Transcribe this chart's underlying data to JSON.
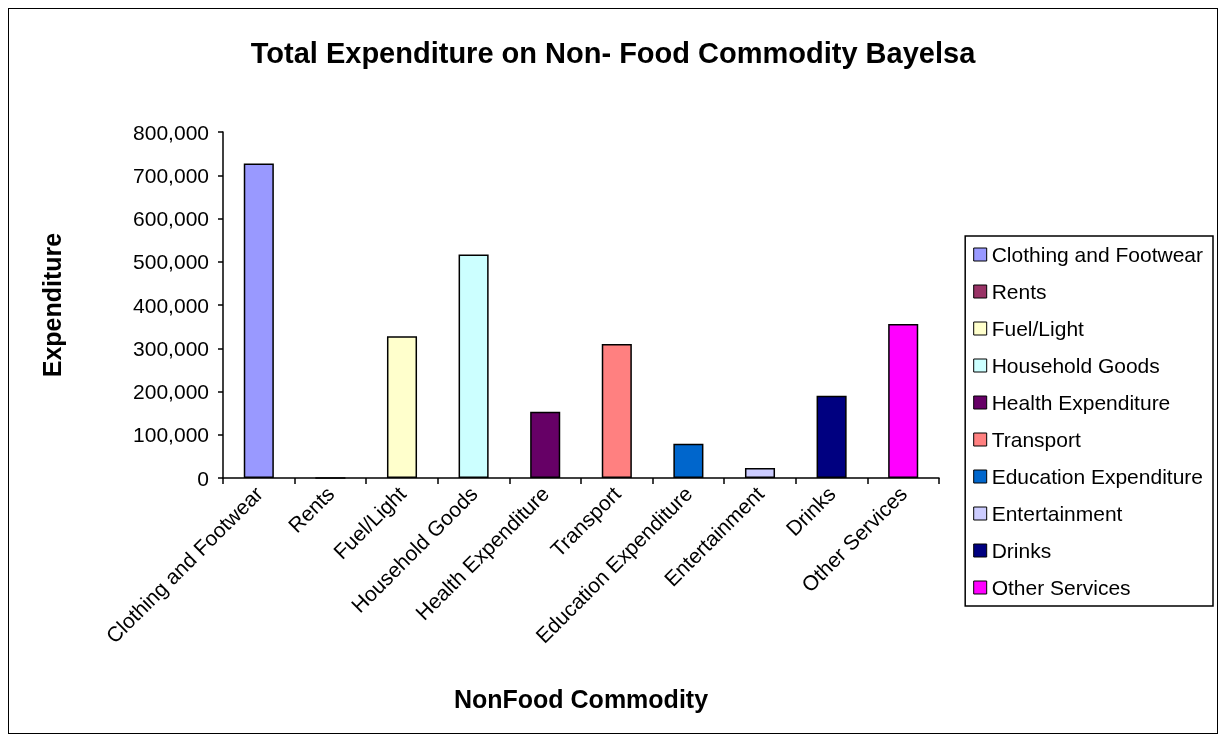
{
  "chart_data": {
    "type": "bar",
    "title": "Total Expenditure on Non- Food Commodity Bayelsa",
    "xlabel": "NonFood Commodity",
    "ylabel": "Expenditure",
    "categories": [
      "Clothing and Footwear",
      "Rents",
      "Fuel/Light",
      "Household Goods",
      "Health Expenditure",
      "Transport",
      "Education Expenditure",
      "Entertainment",
      "Drinks",
      "Other Services"
    ],
    "series": [
      {
        "name": "Clothing and Footwear",
        "color": "#9999ff",
        "values": [
          727000,
          null,
          null,
          null,
          null,
          null,
          null,
          null,
          null,
          null
        ]
      },
      {
        "name": "Rents",
        "color": "#993366",
        "values": [
          null,
          0,
          null,
          null,
          null,
          null,
          null,
          null,
          null,
          null
        ]
      },
      {
        "name": "Fuel/Light",
        "color": "#ffffcc",
        "values": [
          null,
          null,
          328000,
          null,
          null,
          null,
          null,
          null,
          null,
          null
        ]
      },
      {
        "name": "Household Goods",
        "color": "#ccffff",
        "values": [
          null,
          null,
          null,
          517000,
          null,
          null,
          null,
          null,
          null,
          null
        ]
      },
      {
        "name": "Health Expenditure",
        "color": "#660066",
        "values": [
          null,
          null,
          null,
          null,
          153000,
          null,
          null,
          null,
          null,
          null
        ]
      },
      {
        "name": "Transport",
        "color": "#ff8080",
        "values": [
          null,
          null,
          null,
          null,
          null,
          310000,
          null,
          null,
          null,
          null
        ]
      },
      {
        "name": "Education Expenditure",
        "color": "#0066cc",
        "values": [
          null,
          null,
          null,
          null,
          null,
          null,
          79000,
          null,
          null,
          null
        ]
      },
      {
        "name": "Entertainment",
        "color": "#ccccff",
        "values": [
          null,
          null,
          null,
          null,
          null,
          null,
          null,
          23000,
          null,
          null
        ]
      },
      {
        "name": "Drinks",
        "color": "#000080",
        "values": [
          null,
          null,
          null,
          null,
          null,
          null,
          null,
          null,
          190000,
          null
        ]
      },
      {
        "name": "Other Services",
        "color": "#ff00ff",
        "values": [
          null,
          null,
          null,
          null,
          null,
          null,
          null,
          null,
          null,
          356000
        ]
      }
    ],
    "stacked": true,
    "ylim": [
      0,
      800000
    ],
    "yticks": [
      {
        "value": 0,
        "label": "0"
      },
      {
        "value": 100000,
        "label": "100,000"
      },
      {
        "value": 200000,
        "label": "200,000"
      },
      {
        "value": 300000,
        "label": "300,000"
      },
      {
        "value": 400000,
        "label": "400,000"
      },
      {
        "value": 500000,
        "label": "500,000"
      },
      {
        "value": 600000,
        "label": "600,000"
      },
      {
        "value": 700000,
        "label": "700,000"
      },
      {
        "value": 800000,
        "label": "800,000"
      }
    ],
    "grid": false,
    "legend": "right"
  }
}
